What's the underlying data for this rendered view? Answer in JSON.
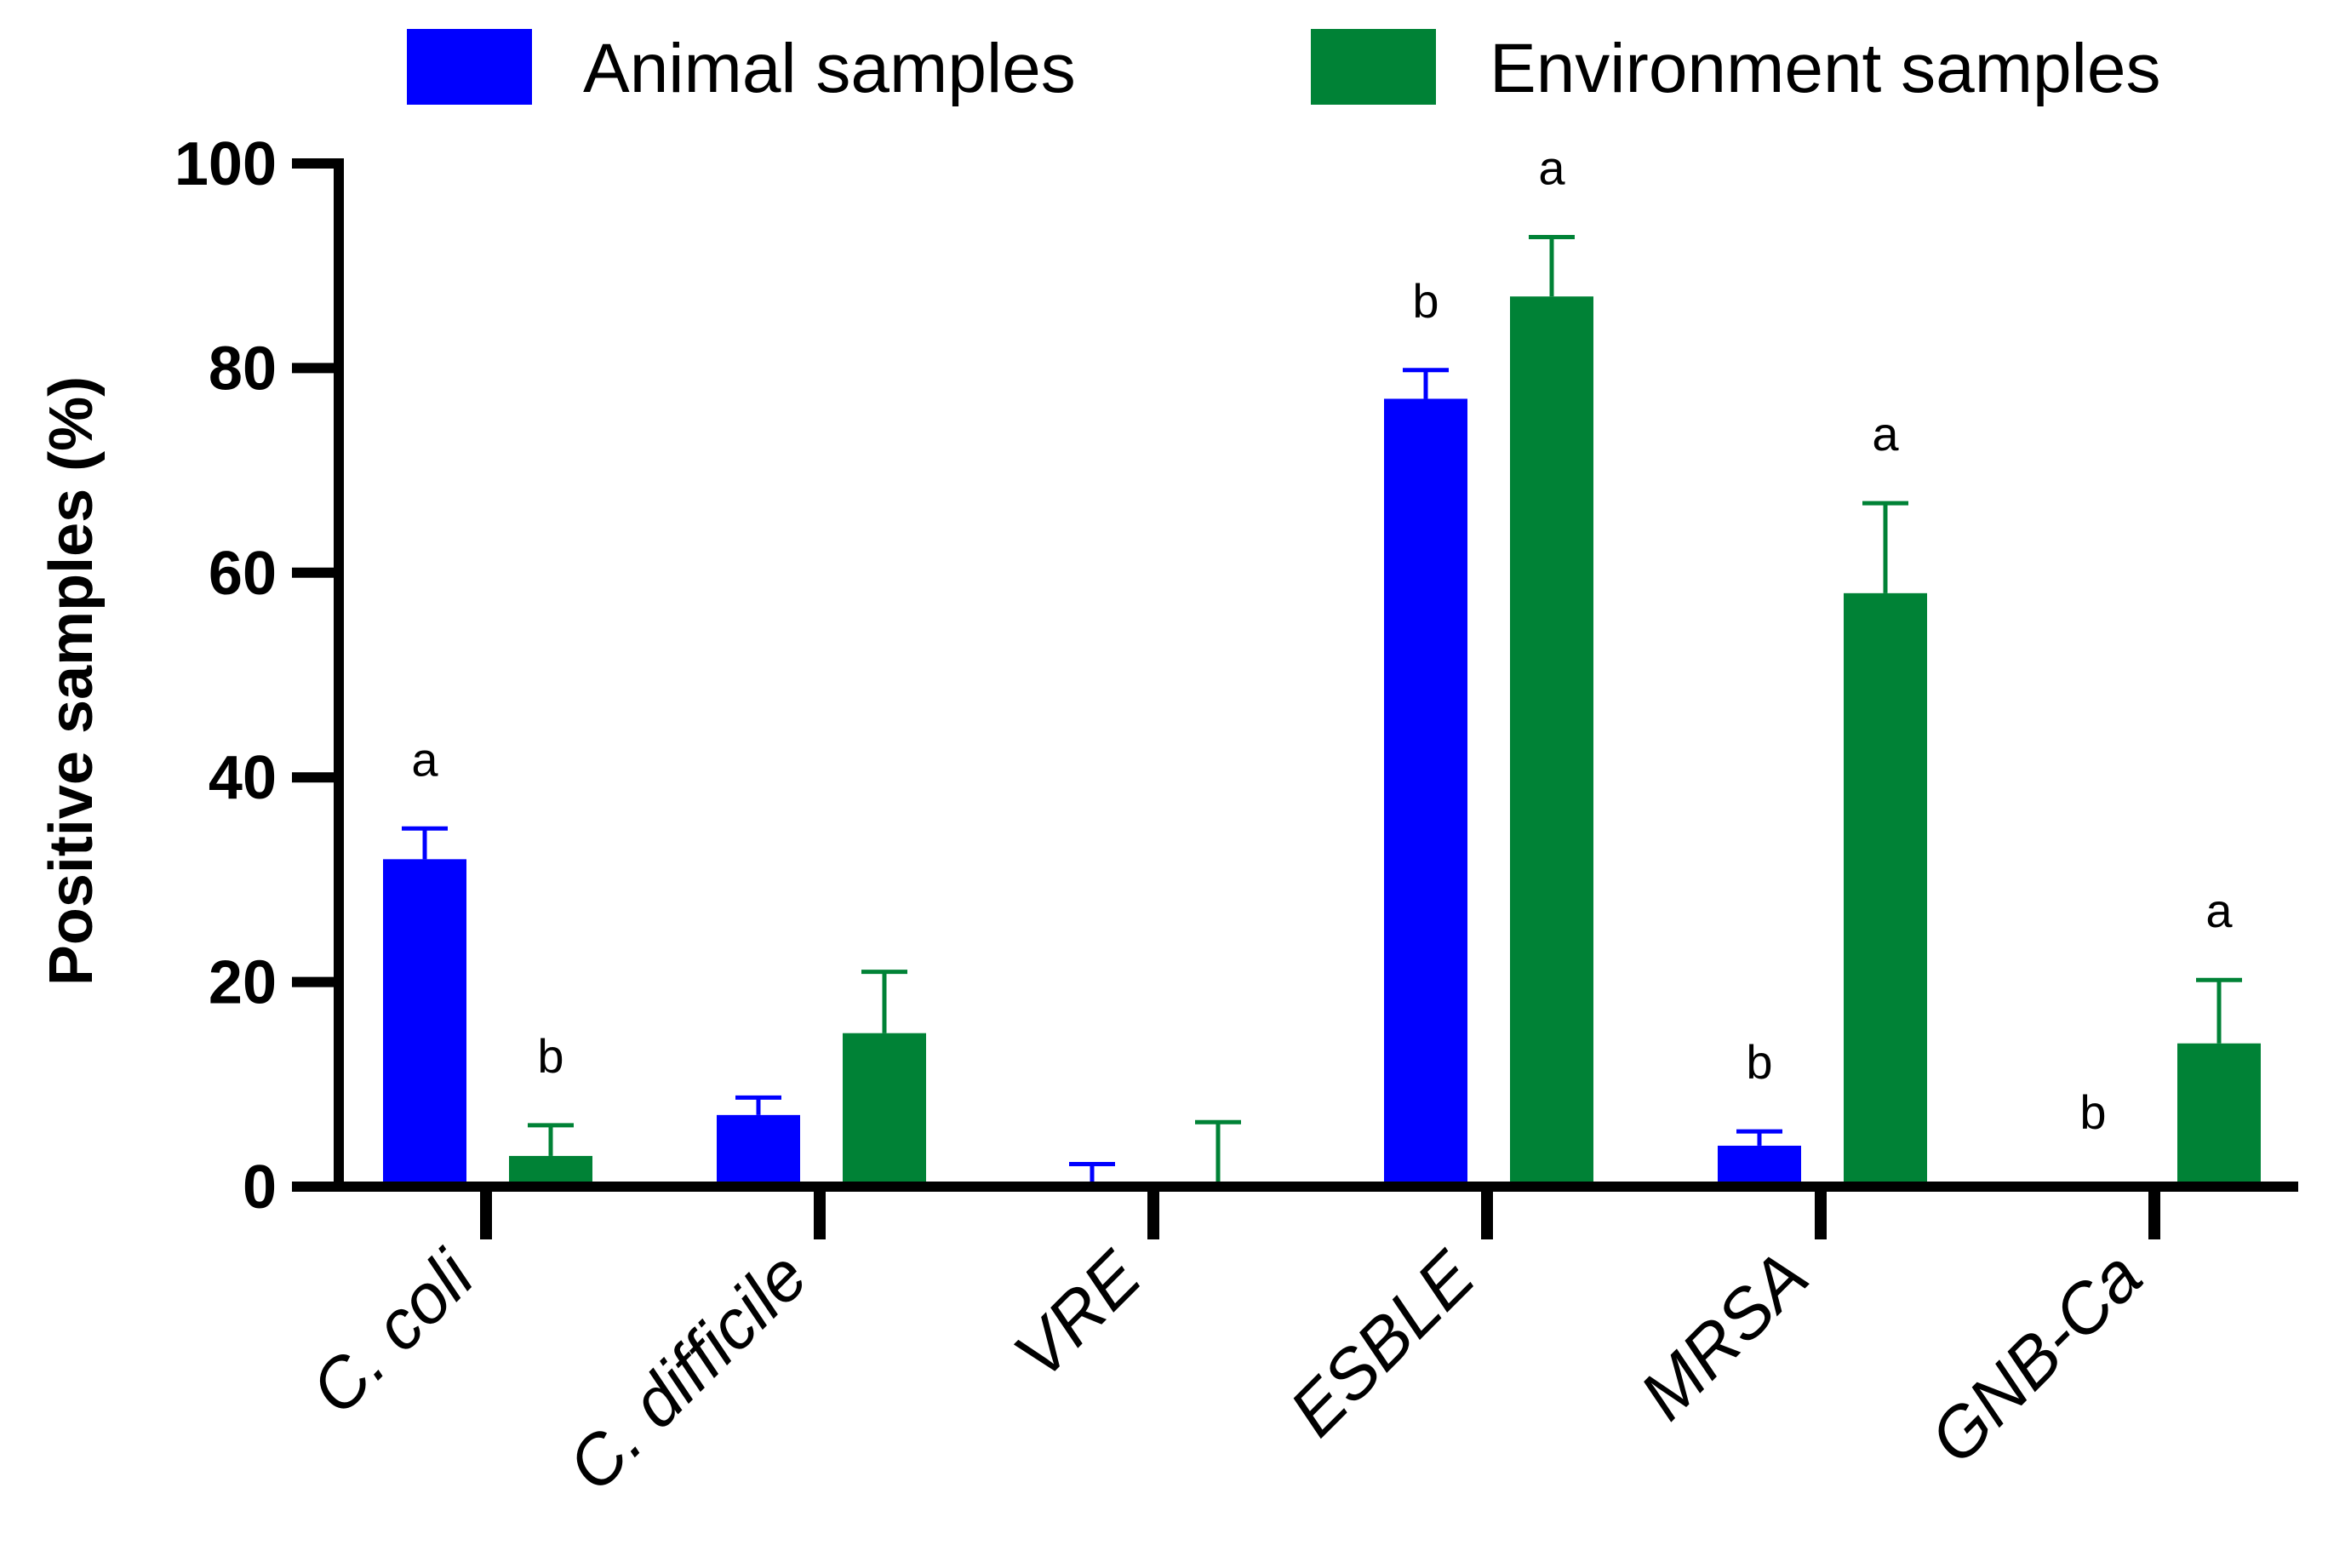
{
  "chart_data": {
    "type": "bar",
    "title": "",
    "xlabel": "",
    "ylabel": "Positive samples (%)",
    "ylim": [
      0,
      100
    ],
    "yticks": [
      0,
      20,
      40,
      60,
      80,
      100
    ],
    "ytick_labels": [
      "0",
      "20",
      "40",
      "60",
      "80",
      "100"
    ],
    "categories": [
      "C. coli",
      "C. difficile",
      "VRE",
      "ESBLE",
      "MRSA",
      "GNB-Ca"
    ],
    "legend_position": "top",
    "series": [
      {
        "name": "Animal samples",
        "color": "#0000ff",
        "values": [
          32,
          7,
          0,
          77,
          4,
          0
        ],
        "error": [
          3,
          1.7,
          2.2,
          2.8,
          1.4,
          0
        ],
        "significance": [
          "a",
          "",
          "",
          "b",
          "b",
          "b"
        ]
      },
      {
        "name": "Environment samples",
        "color": "#008236",
        "values": [
          3,
          15,
          0,
          87,
          58,
          14
        ],
        "error": [
          3,
          6,
          6.3,
          5.8,
          8.8,
          6.2
        ],
        "significance": [
          "b",
          "",
          "",
          "a",
          "a",
          "a"
        ]
      }
    ]
  }
}
